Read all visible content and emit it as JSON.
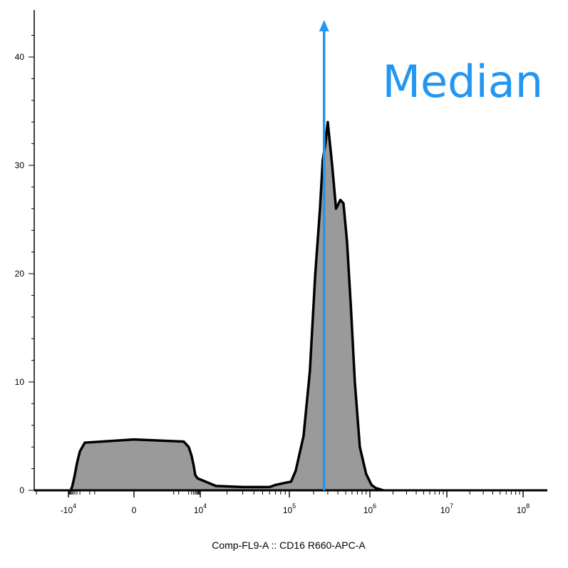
{
  "chart_data": {
    "type": "area",
    "title": "",
    "xlabel": "Comp-FL9-A :: CD16 R660-APC-A",
    "ylabel": "",
    "x_scale": "biexponential",
    "ylim": [
      0,
      44
    ],
    "grid": false,
    "y_ticks": [
      "0",
      "10",
      "20",
      "30",
      "40"
    ],
    "x_tick_labels": [
      {
        "base": "-10",
        "exp": "4"
      },
      {
        "base": "0",
        "exp": ""
      },
      {
        "base": "10",
        "exp": "4"
      },
      {
        "base": "10",
        "exp": "5"
      },
      {
        "base": "10",
        "exp": "6"
      },
      {
        "base": "10",
        "exp": "7"
      },
      {
        "base": "10",
        "exp": "8"
      }
    ],
    "series": [
      {
        "fill": "#9a9a9a",
        "stroke": "#000000",
        "x": [
          -7000,
          -6000,
          -5000,
          -4000,
          -3000,
          -2000,
          -1000,
          0,
          1000,
          2000,
          3000,
          4000,
          5000,
          7000,
          10000,
          15000,
          30000,
          60000,
          70000,
          90000,
          105000,
          120000,
          150000,
          180000,
          210000,
          240000,
          260000,
          280000,
          300000,
          340000,
          380000,
          430000,
          470000,
          520000,
          580000,
          650000,
          750000,
          900000,
          1050000,
          1200000,
          1350000,
          1500000
        ],
        "values": [
          0.1,
          0.3,
          0.8,
          1.5,
          2.5,
          3.6,
          4.4,
          4.7,
          4.5,
          4.0,
          3.2,
          2.3,
          1.4,
          1.1,
          1.0,
          0.4,
          0.3,
          0.3,
          0.5,
          0.7,
          0.8,
          1.8,
          5.0,
          11.0,
          20.0,
          26.0,
          30.5,
          32.0,
          34.0,
          30.0,
          26.0,
          26.8,
          26.5,
          23.0,
          17.0,
          10.0,
          4.0,
          1.5,
          0.5,
          0.2,
          0.1,
          0.0
        ]
      }
    ],
    "median": {
      "label": "Median",
      "x": 270000,
      "color": "#2196f3"
    }
  }
}
